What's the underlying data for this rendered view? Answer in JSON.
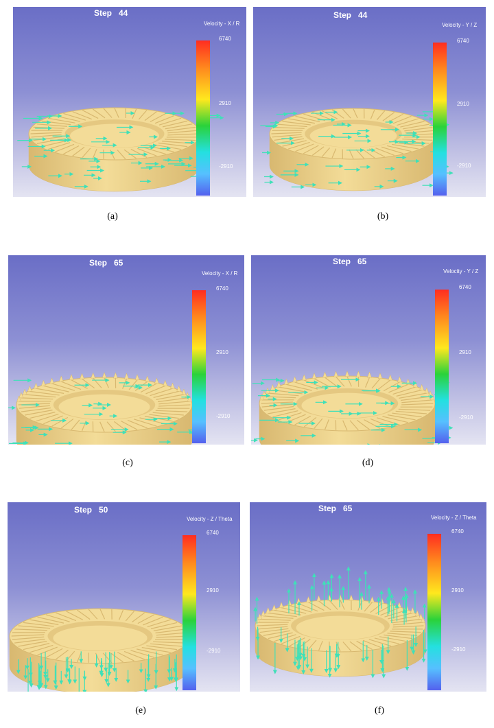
{
  "panels": [
    {
      "caption": "(a)",
      "step": "Step   44",
      "component": "Velocity - X / R",
      "ticks": [
        "6740",
        "2910",
        "-2910"
      ],
      "vectors": "horizontal",
      "gear": "conical-inner"
    },
    {
      "caption": "(b)",
      "step": "Step   44",
      "component": "Velocity - Y / Z",
      "ticks": [
        "6740",
        "2910",
        "-2910"
      ],
      "vectors": "horizontal",
      "gear": "conical-inner"
    },
    {
      "caption": "(c)",
      "step": "Step   65",
      "component": "Velocity - X / R",
      "ticks": [
        "6740",
        "2910",
        "-2910"
      ],
      "vectors": "horizontal",
      "gear": "toothed"
    },
    {
      "caption": "(d)",
      "step": "Step   65",
      "component": "Velocity - Y / Z",
      "ticks": [
        "6740",
        "2910",
        "-2910"
      ],
      "vectors": "horizontal",
      "gear": "toothed"
    },
    {
      "caption": "(e)",
      "step": "Step   50",
      "component": "Velocity - Z / Theta",
      "ticks": [
        "6740",
        "2910",
        "-2910"
      ],
      "vectors": "vertical-down",
      "gear": "conical-inner"
    },
    {
      "caption": "(f)",
      "step": "Step   65",
      "component": "Velocity - Z / Theta",
      "ticks": [
        "6740",
        "2910",
        "-2910"
      ],
      "vectors": "vertical-mixed",
      "gear": "toothed"
    }
  ],
  "colors": {
    "gear": "#f3dc98",
    "gear_shadow": "#d8b870",
    "vector": "#3fe0b8"
  }
}
